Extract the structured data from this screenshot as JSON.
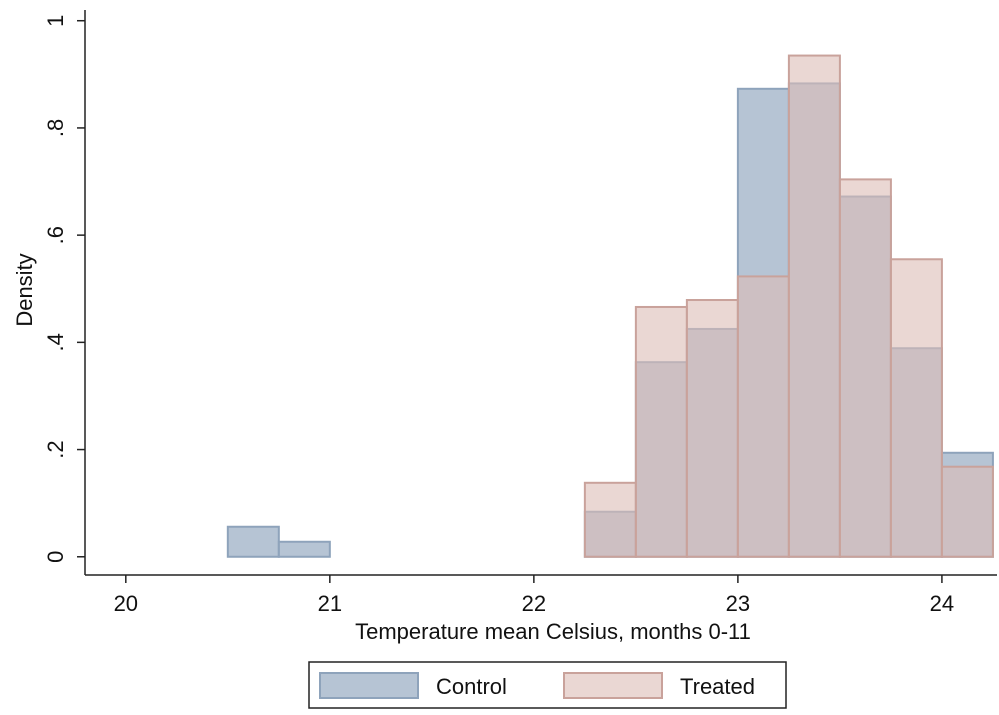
{
  "chart_data": {
    "type": "histogram",
    "xlabel": "Temperature mean Celsius, months 0-11",
    "ylabel": "Density",
    "bins": [
      20.5,
      20.75,
      21,
      21.25,
      21.5,
      21.75,
      22,
      22.25,
      22.5,
      22.75,
      23,
      23.25,
      23.5,
      23.75,
      24,
      24.25
    ],
    "series": [
      {
        "name": "Control",
        "color": "#a9bacd",
        "edge": "#8ea3bb",
        "values": [
          0.056,
          0.028,
          0,
          0,
          0,
          0,
          0,
          0.084,
          0.363,
          0.425,
          0.873,
          0.883,
          0.672,
          0.389,
          0.194
        ]
      },
      {
        "name": "Treated",
        "color": "#dcbcb6",
        "edge": "#c9a29b",
        "values": [
          0,
          0,
          0,
          0,
          0,
          0,
          0,
          0.138,
          0.466,
          0.479,
          0.523,
          0.935,
          0.704,
          0.555,
          0.168
        ]
      }
    ],
    "xlim": [
      19.8,
      24.27
    ],
    "xticks": [
      20,
      21,
      22,
      23,
      24
    ],
    "ylim": [
      -0.034,
      1.02
    ],
    "yticks": [
      0,
      {
        "value": 0.2,
        "label": ".2"
      },
      {
        "value": 0.4,
        "label": ".4"
      },
      {
        "value": 0.6,
        "label": ".6"
      },
      {
        "value": 0.8,
        "label": ".8"
      },
      1
    ],
    "legend": "bottom"
  }
}
